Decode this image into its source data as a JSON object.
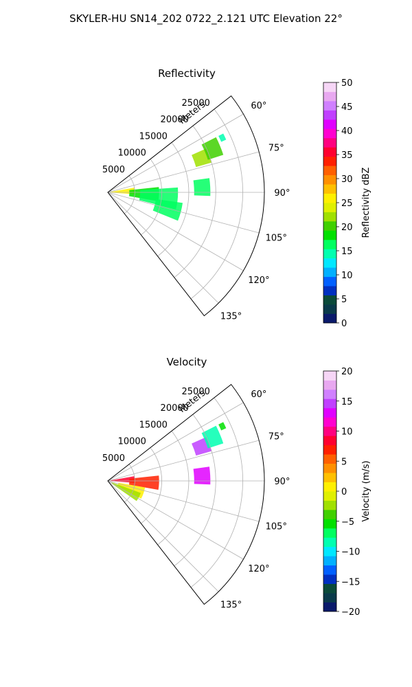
{
  "figure": {
    "suptitle": "SKYLER-HU  SN14_202  0722_2.121 UTC Elevation 22°"
  },
  "chart_data": [
    {
      "type": "heatmap",
      "title": "Reflectivity",
      "projection": "polar-sector",
      "range_label": "Meters",
      "range_ticks": [
        5000,
        10000,
        15000,
        20000,
        25000
      ],
      "range_tick_labels": [
        "5000",
        "10000",
        "15000",
        "20000",
        "25000"
      ],
      "rlim": [
        0,
        29000
      ],
      "azimuth_ticks": [
        60,
        75,
        90,
        105,
        120,
        135
      ],
      "azimuth_tick_labels": [
        "60°",
        "75°",
        "90°",
        "105°",
        "120°",
        "135°"
      ],
      "azimuth_range": [
        52,
        142
      ],
      "grid": true,
      "colorbar": {
        "label": "Reflectivity dBZ",
        "vmin": 0,
        "vmax": 50,
        "ticks": [
          0,
          5,
          10,
          15,
          20,
          25,
          30,
          35,
          40,
          45,
          50
        ],
        "tick_labels": [
          "0",
          "5",
          "10",
          "15",
          "20",
          "25",
          "30",
          "35",
          "40",
          "45",
          "50"
        ],
        "colors": [
          "#0a1a6b",
          "#0a3a4a",
          "#0b4a3a",
          "#0030c0",
          "#0060ff",
          "#00b0ff",
          "#00e8ff",
          "#00ffb0",
          "#00ff60",
          "#00e000",
          "#40d000",
          "#a0e000",
          "#e0f000",
          "#fff000",
          "#ffc000",
          "#ff9000",
          "#ff6000",
          "#ff2000",
          "#ff0030",
          "#ff0080",
          "#ff00d0",
          "#e000ff",
          "#c040ff",
          "#d080ff",
          "#e8a8f0",
          "#f6d6f6"
        ]
      },
      "echo_regions": [
        {
          "az": [
            63,
            66
          ],
          "r": [
            23000,
            24000
          ],
          "value": 15
        },
        {
          "az": [
            66,
            74
          ],
          "r": [
            17000,
            20000
          ],
          "value": 22
        },
        {
          "az": [
            63,
            72
          ],
          "r": [
            19500,
            22500
          ],
          "value": 21
        },
        {
          "az": [
            82,
            92
          ],
          "r": [
            16000,
            19000
          ],
          "value": 17
        },
        {
          "az": [
            80,
            94
          ],
          "r": [
            500,
            5000
          ],
          "value": 26
        },
        {
          "az": [
            84,
            100
          ],
          "r": [
            4000,
            9500
          ],
          "value": 19
        },
        {
          "az": [
            86,
            104
          ],
          "r": [
            6000,
            13000
          ],
          "value": 17
        },
        {
          "az": [
            98,
            112
          ],
          "r": [
            9000,
            14000
          ],
          "value": 16
        }
      ]
    },
    {
      "type": "heatmap",
      "title": "Velocity",
      "projection": "polar-sector",
      "range_label": "Meters",
      "range_ticks": [
        5000,
        10000,
        15000,
        20000,
        25000
      ],
      "range_tick_labels": [
        "5000",
        "10000",
        "15000",
        "20000",
        "25000"
      ],
      "rlim": [
        0,
        29000
      ],
      "azimuth_ticks": [
        60,
        75,
        90,
        105,
        120,
        135
      ],
      "azimuth_tick_labels": [
        "60°",
        "75°",
        "90°",
        "105°",
        "120°",
        "135°"
      ],
      "azimuth_range": [
        52,
        142
      ],
      "grid": true,
      "colorbar": {
        "label": "Velocity (m/s)",
        "vmin": -20,
        "vmax": 20,
        "ticks": [
          -20,
          -15,
          -10,
          -5,
          0,
          5,
          10,
          15,
          20
        ],
        "tick_labels": [
          "−20",
          "−15",
          "−10",
          "−5",
          "0",
          "5",
          "10",
          "15",
          "20"
        ],
        "colors": [
          "#0a1a6b",
          "#0a3a4a",
          "#0b4a3a",
          "#0030c0",
          "#0060ff",
          "#00b0ff",
          "#00e8ff",
          "#00ffb0",
          "#00ff60",
          "#00e000",
          "#40d000",
          "#a0e000",
          "#e0f000",
          "#fff000",
          "#ffc000",
          "#ff9000",
          "#ff6000",
          "#ff2000",
          "#ff0030",
          "#ff0080",
          "#ff00d0",
          "#e000ff",
          "#c040ff",
          "#d080ff",
          "#e8a8f0",
          "#f6d6f6"
        ]
      },
      "echo_regions": [
        {
          "az": [
            63,
            66
          ],
          "r": [
            23000,
            24000
          ],
          "value": -6
        },
        {
          "az": [
            66,
            74
          ],
          "r": [
            17000,
            20000
          ],
          "value": 14
        },
        {
          "az": [
            63,
            72
          ],
          "r": [
            19500,
            22500
          ],
          "value": -9
        },
        {
          "az": [
            82,
            92
          ],
          "r": [
            16000,
            19000
          ],
          "value": 13
        },
        {
          "az": [
            80,
            94
          ],
          "r": [
            500,
            5000
          ],
          "value": 9
        },
        {
          "az": [
            84,
            100
          ],
          "r": [
            4000,
            9500
          ],
          "value": 7
        },
        {
          "az": [
            100,
            118
          ],
          "r": [
            2000,
            7000
          ],
          "value": 0
        },
        {
          "az": [
            110,
            125
          ],
          "r": [
            800,
            6500
          ],
          "value": -3
        }
      ]
    }
  ]
}
